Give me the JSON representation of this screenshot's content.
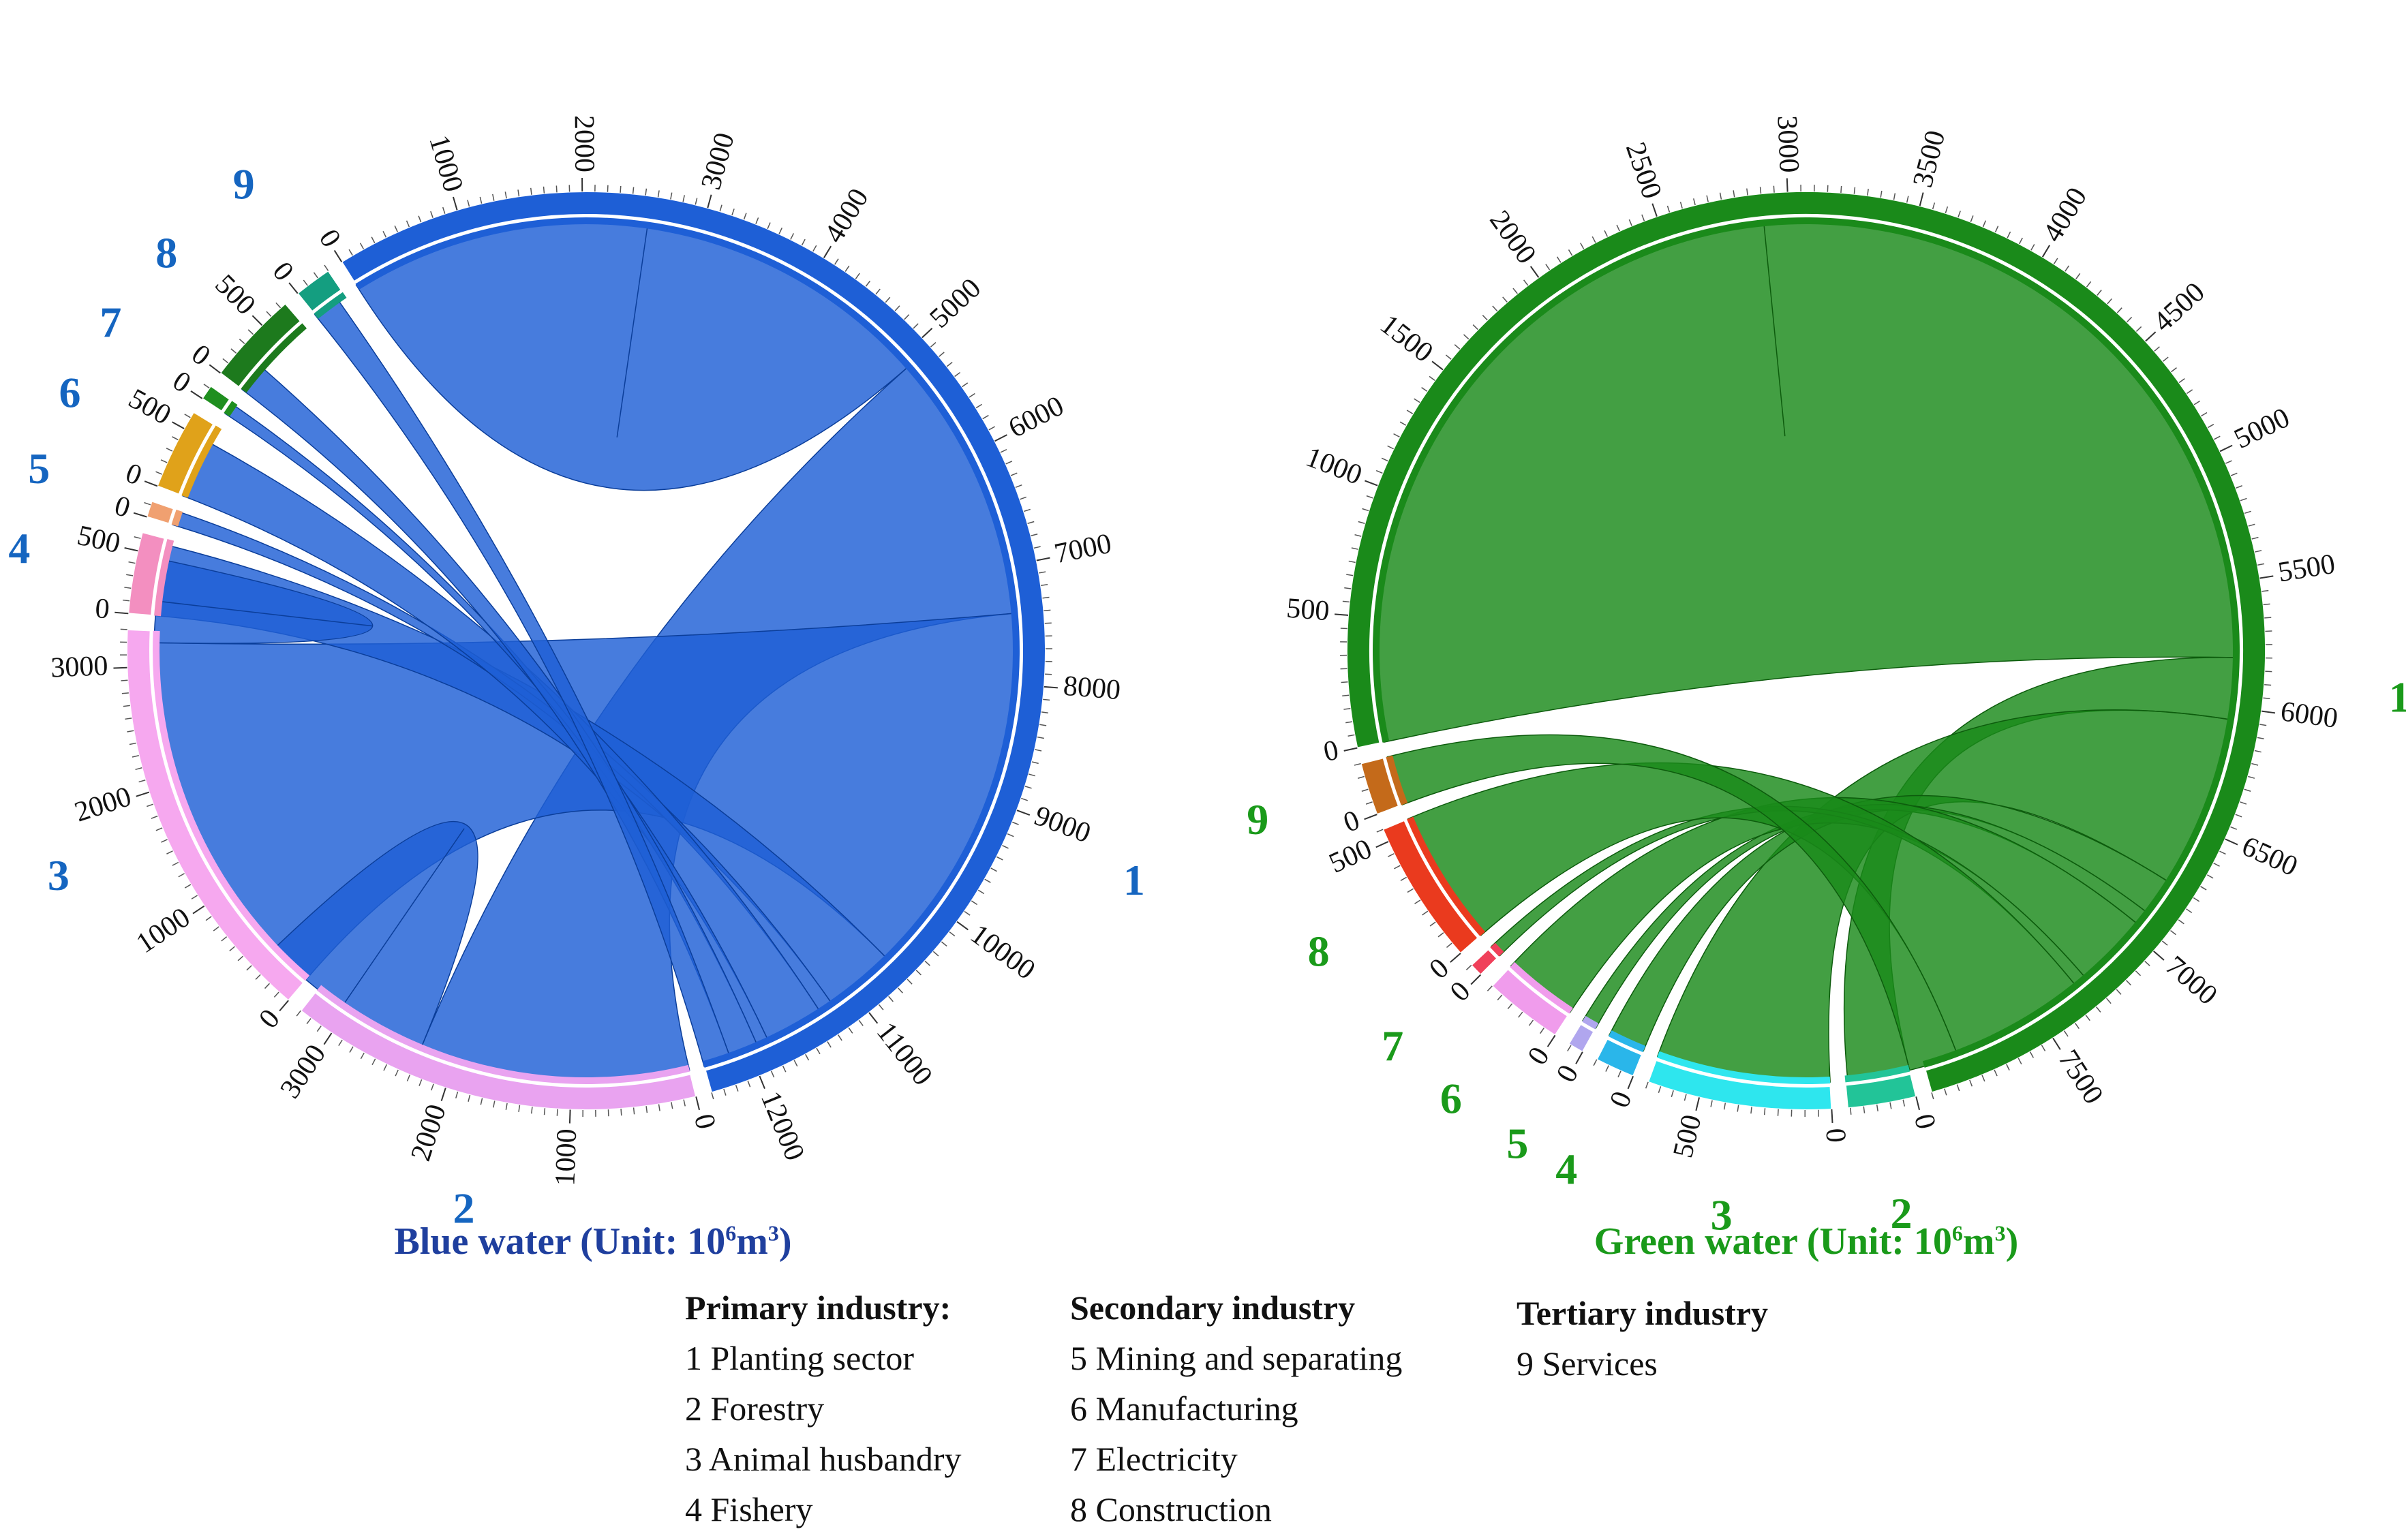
{
  "chart_data": [
    {
      "type": "chord",
      "title_parts": {
        "main": "Blue water (Unit: 10",
        "exp": "6",
        "unit": "m",
        "unit_exp": "3",
        "close": ")"
      },
      "sectors": [
        {
          "id": "1",
          "value": 12400,
          "color": "#1e5fd6",
          "ticks": [
            0,
            1000,
            2000,
            3000,
            4000,
            5000,
            6000,
            7000,
            8000,
            9000,
            10000,
            11000,
            12000
          ]
        },
        {
          "id": "2",
          "value": 3300,
          "color": "#e9a3f0",
          "ticks": [
            0,
            1000,
            2000,
            3000
          ]
        },
        {
          "id": "3",
          "value": 3300,
          "color": "#f6a8ef",
          "ticks": [
            0,
            1000,
            2000,
            3000
          ]
        },
        {
          "id": "4",
          "value": 650,
          "color": "#f38fc0",
          "ticks": [
            0,
            500
          ]
        },
        {
          "id": "5",
          "value": 130,
          "color": "#f0a070",
          "ticks": [
            0
          ]
        },
        {
          "id": "6",
          "value": 650,
          "color": "#e0a21a",
          "ticks": [
            0,
            500
          ]
        },
        {
          "id": "7",
          "value": 120,
          "color": "#1f8f1f",
          "ticks": [
            0
          ]
        },
        {
          "id": "8",
          "value": 750,
          "color": "#1d7a1d",
          "ticks": [
            0,
            500
          ]
        },
        {
          "id": "9",
          "value": 300,
          "color": "#149e80",
          "ticks": [
            0
          ]
        }
      ],
      "flows": [
        {
          "from": "1",
          "to": "1",
          "value": 5100
        },
        {
          "from": "1",
          "to": "2",
          "value": 2300
        },
        {
          "from": "1",
          "to": "3",
          "value": 3200
        },
        {
          "from": "1",
          "to": "4",
          "value": 600
        },
        {
          "from": "1",
          "to": "5",
          "value": 120
        },
        {
          "from": "1",
          "to": "6",
          "value": 500
        },
        {
          "from": "1",
          "to": "7",
          "value": 100
        },
        {
          "from": "1",
          "to": "8",
          "value": 250
        },
        {
          "from": "1",
          "to": "9",
          "value": 230
        },
        {
          "from": "3",
          "to": "3",
          "value": 700
        },
        {
          "from": "2",
          "to": "2",
          "value": 1500
        }
      ]
    },
    {
      "type": "chord",
      "title_parts": {
        "main": "Green water (Unit: 10",
        "exp": "6",
        "unit": "m",
        "unit_exp": "3",
        "close": ")"
      },
      "sectors": [
        {
          "id": "1",
          "value": 8000,
          "color": "#1a8a1a",
          "ticks": [
            0,
            500,
            1000,
            1500,
            2000,
            2500,
            3000,
            3500,
            4000,
            4500,
            5000,
            5500,
            6000,
            6500,
            7000,
            7500
          ]
        },
        {
          "id": "2",
          "value": 260,
          "color": "#22c498",
          "ticks": [
            0
          ]
        },
        {
          "id": "3",
          "value": 700,
          "color": "#2ee6ee",
          "ticks": [
            0,
            500
          ]
        },
        {
          "id": "4",
          "value": 150,
          "color": "#2ab6ea",
          "ticks": [
            0
          ]
        },
        {
          "id": "5",
          "value": 60,
          "color": "#b0a6ee",
          "ticks": [
            0
          ]
        },
        {
          "id": "6",
          "value": 300,
          "color": "#f09cec",
          "ticks": [
            0
          ]
        },
        {
          "id": "7",
          "value": 50,
          "color": "#f0405a",
          "ticks": [
            0
          ]
        },
        {
          "id": "8",
          "value": 550,
          "color": "#ea3a1e",
          "ticks": [
            0,
            500
          ]
        },
        {
          "id": "9",
          "value": 200,
          "color": "#c46a1a",
          "ticks": [
            0
          ]
        }
      ],
      "flows": [
        {
          "from": "1",
          "to": "1",
          "value": 5800
        },
        {
          "from": "1",
          "to": "2",
          "value": 250
        },
        {
          "from": "1",
          "to": "3",
          "value": 700
        },
        {
          "from": "1",
          "to": "4",
          "value": 150
        },
        {
          "from": "1",
          "to": "5",
          "value": 60
        },
        {
          "from": "1",
          "to": "6",
          "value": 300
        },
        {
          "from": "1",
          "to": "7",
          "value": 50
        },
        {
          "from": "1",
          "to": "8",
          "value": 550
        },
        {
          "from": "1",
          "to": "9",
          "value": 200
        }
      ]
    }
  ],
  "legend": {
    "primary": {
      "heading": "Primary industry:",
      "items": [
        "1 Planting sector",
        "2 Forestry",
        "3 Animal husbandry",
        "4 Fishery"
      ]
    },
    "secondary": {
      "heading": "Secondary industry",
      "items": [
        "5 Mining and separating",
        "6 Manufacturing",
        "7 Electricity",
        "8 Construction"
      ]
    },
    "tertiary": {
      "heading": "Tertiary industry",
      "items": [
        "9 Services"
      ]
    }
  },
  "colors": {
    "blue_label": "#1565c0",
    "green_label": "#1a9a1a",
    "blue_title": "#1f3f9e",
    "green_title": "#1a9a1a"
  }
}
